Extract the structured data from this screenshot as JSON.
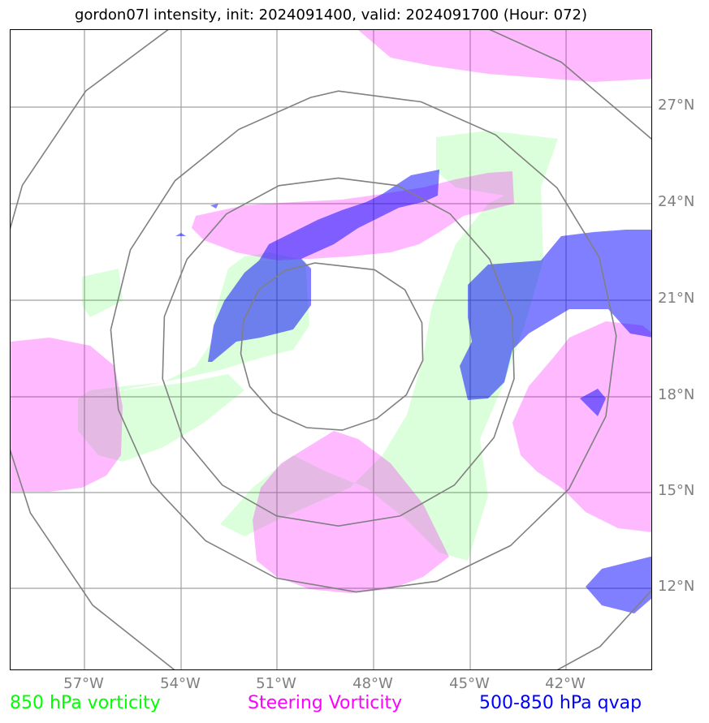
{
  "title": "gordon07l intensity, init: 2024091400, valid: 2024091700 (Hour: 072)",
  "latitude_labels": [
    "27°N",
    "24°N",
    "21°N",
    "18°N",
    "15°N",
    "12°N"
  ],
  "longitude_labels": [
    "57°W",
    "54°W",
    "51°W",
    "48°W",
    "45°W",
    "42°W"
  ],
  "legend": {
    "vorticity_850": "850 hPa vorticity",
    "steering_vorticity": "Steering Vorticity",
    "qvap_500_850": "500-850 hPa qvap"
  },
  "colors": {
    "vorticity_850": "#00ff00",
    "steering_vorticity": "#ff00ff",
    "qvap_500_850": "#0000ff",
    "grid": "#a0a0a0",
    "range_rings": "#808080"
  }
}
